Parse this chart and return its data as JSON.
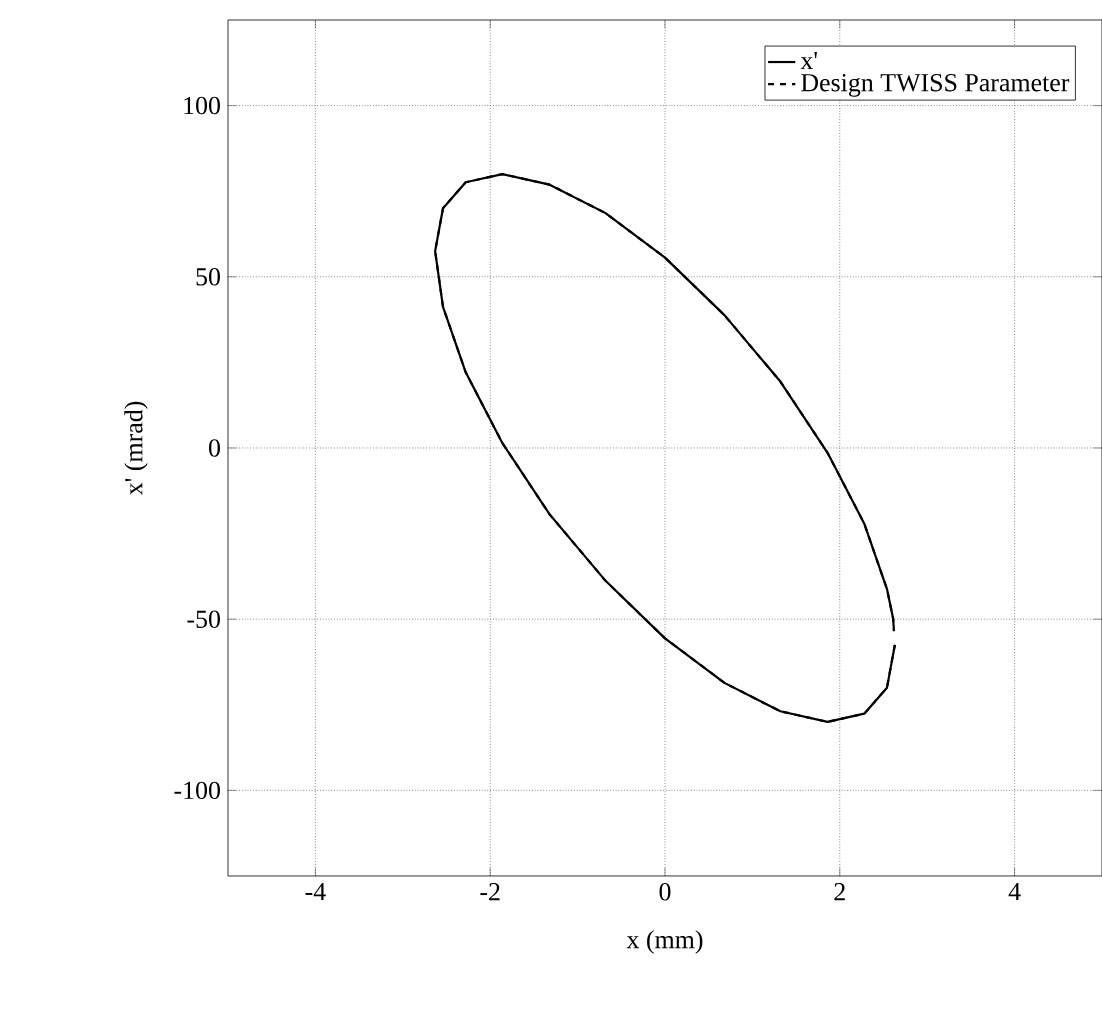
{
  "chart_data": {
    "type": "line",
    "xlabel": "x (mm)",
    "ylabel": "x' (mrad)",
    "xlim": [
      -5,
      5
    ],
    "ylim": [
      -125,
      125
    ],
    "xticks": [
      -4,
      -2,
      0,
      2,
      4
    ],
    "yticks": [
      -100,
      -50,
      0,
      50,
      100
    ],
    "grid": true,
    "legend": "top right",
    "marker": "none",
    "series": [
      {
        "name": "x'",
        "color": "#000000",
        "line_style": "solid",
        "x": [
          2.63,
          2.54,
          2.28,
          1.86,
          1.32,
          0.68,
          0,
          -0.68,
          -1.32,
          -1.86,
          -2.28,
          -2.54,
          -2.63,
          -2.54,
          -2.28,
          -1.86,
          -1.32,
          -0.68,
          0,
          0.68,
          1.32,
          1.86,
          2.28,
          2.54,
          2.61,
          2.62
        ],
        "values": [
          -57.5,
          -70,
          -77.6,
          -80,
          -76.9,
          -68.6,
          -55.6,
          -38.8,
          -19.4,
          1.4,
          22.1,
          41.2,
          57.5,
          70,
          77.6,
          80,
          76.9,
          68.6,
          55.6,
          38.8,
          19.4,
          -1.4,
          -22.1,
          -41.2,
          -49.8,
          -53.5
        ]
      },
      {
        "name": "Design TWISS Parameter",
        "color": "#000000",
        "line_style": "dashed",
        "x": [
          2.63,
          2.54,
          2.28,
          1.86,
          1.32,
          0.68,
          0,
          -0.68,
          -1.32,
          -1.86,
          -2.28,
          -2.54,
          -2.63,
          -2.54,
          -2.28,
          -1.86,
          -1.32,
          -0.68,
          0,
          0.68,
          1.32,
          1.86,
          2.28,
          2.54,
          2.61,
          2.62
        ],
        "values": [
          -57.5,
          -70,
          -77.6,
          -80,
          -76.9,
          -68.6,
          -55.6,
          -38.8,
          -19.4,
          1.4,
          22.1,
          41.2,
          57.5,
          70,
          77.6,
          80,
          76.9,
          68.6,
          55.6,
          38.8,
          19.4,
          -1.4,
          -22.1,
          -41.2,
          -49.8,
          -53.5
        ]
      }
    ]
  }
}
